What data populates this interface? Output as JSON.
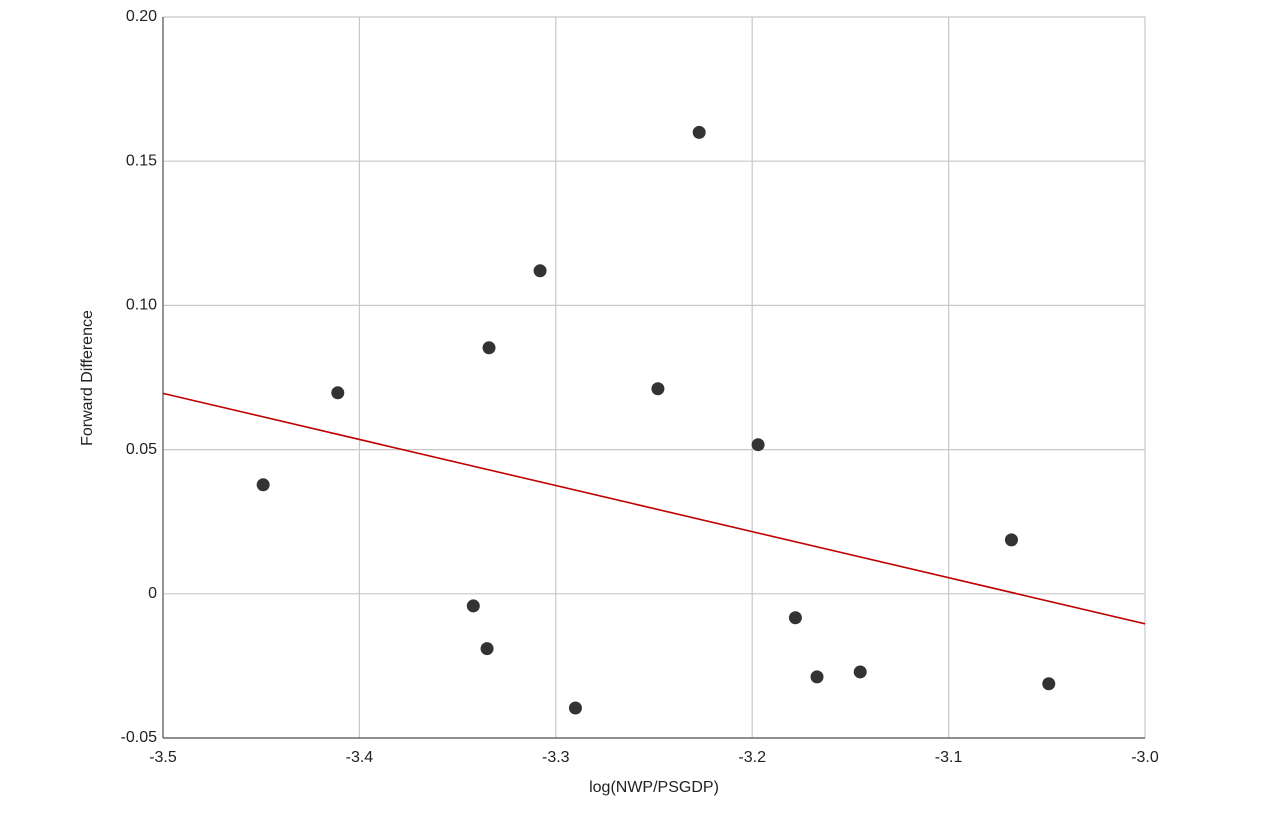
{
  "chart_data": {
    "type": "scatter",
    "xlabel": "log(NWP/PSGDP)",
    "ylabel": "Forward Difference",
    "xlim": [
      -3.5,
      -3.0
    ],
    "xticks": [
      -3.5,
      -3.4,
      -3.3,
      -3.2,
      -3.1,
      {
        "value": -3.0,
        "label": "-3.0"
      }
    ],
    "ylim": [
      -0.05,
      0.2
    ],
    "yticks": [
      -0.05,
      0,
      0.05,
      {
        "value": 0.1,
        "label": "0.10"
      },
      0.15,
      {
        "value": 0.2,
        "label": "0.20"
      }
    ],
    "grid": true,
    "series": [
      {
        "type": "scatter",
        "color": "#333333",
        "x": [
          -3.449,
          -3.411,
          -3.342,
          -3.335,
          -3.334,
          -3.308,
          -3.29,
          -3.248,
          -3.227,
          -3.197,
          -3.178,
          -3.167,
          -3.145,
          -3.068,
          -3.049
        ],
        "values": [
          0.0378,
          0.0697,
          -0.0042,
          -0.019,
          0.0853,
          0.112,
          -0.0396,
          0.0711,
          0.16,
          0.0517,
          -0.0083,
          -0.0288,
          -0.0271,
          0.0187,
          -0.0312
        ]
      },
      {
        "type": "line",
        "color": "#c00000",
        "x": [
          -3.5,
          -3.0
        ],
        "values": [
          0.0695,
          -0.0104
        ]
      }
    ]
  }
}
